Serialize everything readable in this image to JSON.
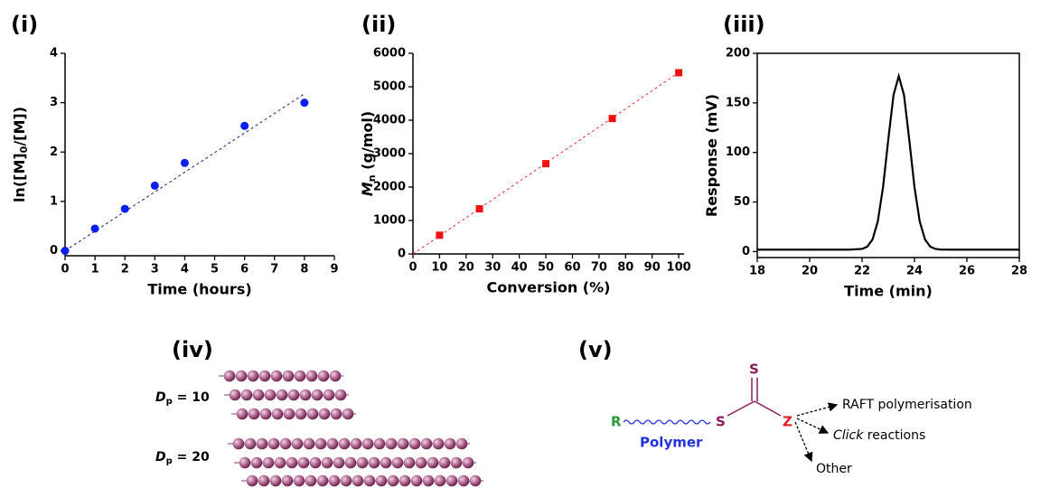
{
  "chart_data": [
    {
      "type": "scatter",
      "panel_label": "(i)",
      "x_label": "Time (hours)",
      "y_label": [
        {
          "text": "ln([M]"
        },
        {
          "text": "0",
          "sub": true
        },
        {
          "text": "/[M])"
        }
      ],
      "xlim": [
        0,
        9
      ],
      "xticks": [
        0,
        1,
        2,
        3,
        4,
        5,
        6,
        7,
        8,
        9
      ],
      "ylim": [
        -0.1,
        4
      ],
      "yticks": [
        0,
        1,
        2,
        3,
        4
      ],
      "box": false,
      "series": [
        {
          "style": "circle",
          "color": "#0a1ef0",
          "x": [
            0,
            1,
            2,
            3,
            4,
            6,
            8
          ],
          "values": [
            0,
            0.45,
            0.85,
            1.32,
            1.78,
            2.53,
            3.0
          ]
        },
        {
          "style": "dashed",
          "color": "#1a237e",
          "x": [
            0,
            8
          ],
          "values": [
            0,
            3.18
          ]
        }
      ]
    },
    {
      "type": "scatter",
      "panel_label": "(ii)",
      "x_label": "Conversion (%)",
      "y_label": [
        {
          "text": "M",
          "italic": true
        },
        {
          "text": "n",
          "sub": true
        },
        {
          "text": " (g/mol)"
        }
      ],
      "xlim": [
        0,
        102
      ],
      "xticks": [
        0,
        10,
        20,
        30,
        40,
        50,
        60,
        70,
        80,
        90,
        100
      ],
      "ylim": [
        0,
        6000
      ],
      "yticks": [
        0,
        1000,
        2000,
        3000,
        4000,
        5000,
        6000
      ],
      "box": false,
      "series": [
        {
          "style": "square",
          "color": "#ee1111",
          "x": [
            10,
            25,
            50,
            75,
            100
          ],
          "values": [
            560,
            1350,
            2700,
            4050,
            5420
          ]
        },
        {
          "style": "dashed",
          "color": "#ee3333",
          "x": [
            0,
            101
          ],
          "values": [
            0,
            5480
          ]
        }
      ]
    },
    {
      "type": "line",
      "panel_label": "(iii)",
      "x_label": "Time (min)",
      "y_label": [
        {
          "text": "Response (mV)"
        }
      ],
      "xlim": [
        18,
        28
      ],
      "xticks": [
        18,
        20,
        22,
        24,
        26,
        28
      ],
      "ylim": [
        -6,
        200
      ],
      "yticks": [
        0,
        50,
        100,
        150,
        200
      ],
      "box": true,
      "series": [
        {
          "style": "solid",
          "color": "#000000",
          "x": [
            18,
            19,
            20,
            21,
            21.5,
            22,
            22.2,
            22.4,
            22.6,
            22.8,
            23,
            23.2,
            23.4,
            23.6,
            23.8,
            24,
            24.2,
            24.4,
            24.6,
            24.8,
            25,
            25.5,
            26,
            27,
            28
          ],
          "values": [
            2,
            2,
            2,
            2,
            2,
            2.7,
            5,
            12.3,
            30.5,
            65,
            113,
            158,
            177,
            158,
            113,
            65,
            30.5,
            12.3,
            5,
            2.7,
            2.1,
            2,
            2,
            2,
            2
          ]
        }
      ]
    }
  ],
  "diagram_iv": {
    "panel_label": "(iv)",
    "rows": [
      {
        "symbol": "D",
        "subscript": "p",
        "text": " = 10"
      },
      {
        "symbol": "D",
        "subscript": "p",
        "text": " = 20"
      }
    ]
  },
  "diagram_v": {
    "panel_label": "(v)",
    "r_group": "R",
    "polymer": "Polymer",
    "sulfur_top": "S",
    "sulfur_bridge": "S",
    "z_group": "Z",
    "outcomes": [
      {
        "text": "RAFT polymerisation"
      },
      {
        "italic": "Click",
        "text": " reactions"
      },
      {
        "text": "Other"
      }
    ]
  }
}
